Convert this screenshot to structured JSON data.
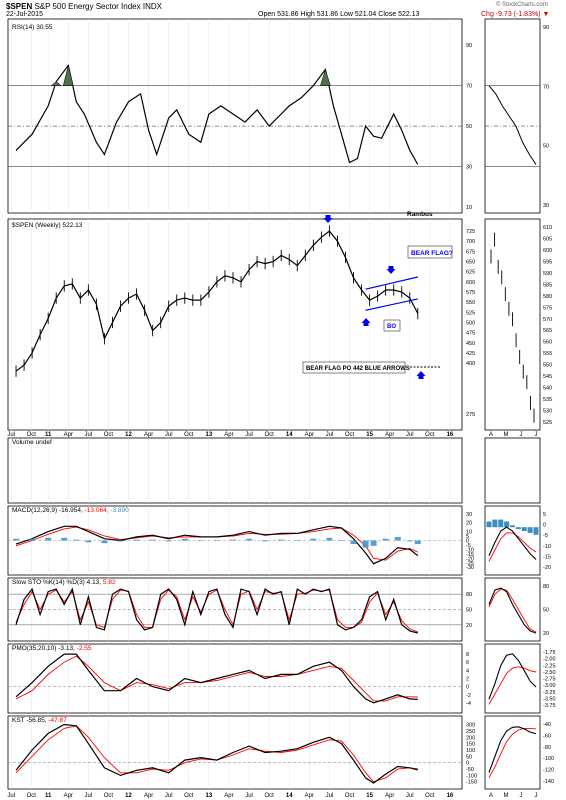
{
  "header": {
    "symbol": "$SPEN",
    "name": "S&P 500 Energy Sector Index",
    "exchange": "INDX",
    "date": "22-Jul-2015",
    "quote_line1": "Open 531.86  High 531.86  Low 521.04  Close 522.13",
    "quote_line2": "Chg -9.73 (-1.83%) ▼",
    "credit": "© StockCharts.com"
  },
  "colors": {
    "price": "#000000",
    "signal": "#ff0000",
    "histogram": "#3a8ec4",
    "annotation": "#0000ee",
    "rsi_fill": "#4e7148",
    "grid": "#999999"
  },
  "chart_data": [
    {
      "type": "line",
      "panel": "rsi",
      "title": "RSI(14) 30.55",
      "ylim": [
        10,
        100
      ],
      "yticks": [
        10,
        30,
        50,
        70,
        90
      ],
      "levels": [
        30,
        50,
        70
      ],
      "x": [
        2010.6,
        2010.8,
        2011.0,
        2011.1,
        2011.25,
        2011.35,
        2011.45,
        2011.6,
        2011.7,
        2011.85,
        2012.0,
        2012.15,
        2012.25,
        2012.35,
        2012.5,
        2012.6,
        2012.75,
        2012.9,
        2013.0,
        2013.15,
        2013.3,
        2013.45,
        2013.6,
        2013.75,
        2013.9,
        2014.0,
        2014.15,
        2014.3,
        2014.45,
        2014.55,
        2014.65,
        2014.75,
        2014.85,
        2014.95,
        2015.05,
        2015.15,
        2015.3,
        2015.4,
        2015.5,
        2015.6
      ],
      "values": [
        38,
        46,
        60,
        72,
        80,
        62,
        56,
        42,
        36,
        52,
        62,
        66,
        48,
        36,
        54,
        58,
        46,
        42,
        56,
        60,
        56,
        52,
        58,
        50,
        56,
        60,
        64,
        70,
        78,
        60,
        46,
        32,
        34,
        50,
        45,
        44,
        56,
        48,
        38,
        31
      ]
    },
    {
      "type": "line",
      "panel": "price",
      "title": "$SPEN (Weekly) 522.13",
      "label": "Rambus",
      "ylim": [
        250,
        740
      ],
      "yticks": [
        275,
        400,
        425,
        450,
        475,
        500,
        525,
        550,
        575,
        600,
        625,
        650,
        675,
        700,
        725
      ],
      "x": [
        2010.6,
        2010.7,
        2010.8,
        2010.9,
        2011.0,
        2011.1,
        2011.2,
        2011.3,
        2011.4,
        2011.5,
        2011.6,
        2011.7,
        2011.8,
        2011.9,
        2012.0,
        2012.1,
        2012.2,
        2012.3,
        2012.4,
        2012.5,
        2012.6,
        2012.7,
        2012.8,
        2012.9,
        2013.0,
        2013.1,
        2013.2,
        2013.3,
        2013.4,
        2013.5,
        2013.6,
        2013.7,
        2013.8,
        2013.9,
        2014.0,
        2014.1,
        2014.2,
        2014.3,
        2014.4,
        2014.5,
        2014.6,
        2014.7,
        2014.8,
        2014.9,
        2015.0,
        2015.1,
        2015.2,
        2015.3,
        2015.4,
        2015.5,
        2015.6
      ],
      "values": [
        380,
        395,
        425,
        470,
        510,
        560,
        590,
        595,
        560,
        580,
        545,
        460,
        500,
        540,
        560,
        570,
        530,
        480,
        500,
        540,
        555,
        560,
        555,
        555,
        575,
        600,
        615,
        610,
        600,
        630,
        650,
        645,
        650,
        665,
        655,
        640,
        665,
        690,
        710,
        725,
        700,
        660,
        610,
        580,
        555,
        565,
        580,
        580,
        575,
        560,
        522
      ],
      "annotations": [
        "BEAR FLAG?",
        "BO",
        "BEAR FLAG PO 442 BLUE ARROWS"
      ]
    },
    {
      "type": "bar",
      "panel": "volume",
      "title": "Volume undef"
    },
    {
      "type": "line",
      "panel": "macd",
      "title": "MACD(12,26,9)",
      "macd_value": "-16.954",
      "signal_value": "-13.064",
      "hist_value": "-3.890",
      "ylim": [
        -32,
        32
      ],
      "yticks": [
        -30,
        -25,
        -20,
        -15,
        -10,
        -5,
        0,
        5,
        10,
        20,
        30
      ],
      "x": [
        2010.6,
        2010.8,
        2011.0,
        2011.2,
        2011.35,
        2011.5,
        2011.7,
        2011.9,
        2012.1,
        2012.3,
        2012.5,
        2012.7,
        2012.9,
        2013.1,
        2013.3,
        2013.5,
        2013.7,
        2013.9,
        2014.1,
        2014.3,
        2014.5,
        2014.65,
        2014.8,
        2014.95,
        2015.05,
        2015.2,
        2015.35,
        2015.5,
        2015.6
      ],
      "values": [
        -4,
        2,
        10,
        16,
        16,
        10,
        2,
        0,
        4,
        6,
        2,
        6,
        4,
        4,
        6,
        10,
        6,
        8,
        8,
        12,
        16,
        14,
        2,
        -14,
        -26,
        -20,
        -8,
        -10,
        -17
      ],
      "signal": [
        -6,
        0,
        7,
        13,
        15,
        12,
        5,
        1,
        3,
        5,
        3,
        4,
        4,
        4,
        5,
        8,
        7,
        7,
        8,
        10,
        13,
        14,
        6,
        -6,
        -20,
        -22,
        -12,
        -9,
        -13
      ]
    },
    {
      "type": "line",
      "panel": "stochastic",
      "title": "Slow STO %K(14) %D(3)",
      "k_value": "4.13",
      "d_value": "5.82",
      "ylim": [
        0,
        100
      ],
      "yticks": [
        20,
        50,
        80
      ],
      "x": [
        2010.6,
        2010.7,
        2010.8,
        2010.9,
        2011.0,
        2011.1,
        2011.2,
        2011.3,
        2011.4,
        2011.5,
        2011.6,
        2011.7,
        2011.8,
        2011.9,
        2012.0,
        2012.1,
        2012.2,
        2012.3,
        2012.4,
        2012.5,
        2012.6,
        2012.7,
        2012.8,
        2012.9,
        2013.0,
        2013.1,
        2013.2,
        2013.3,
        2013.4,
        2013.5,
        2013.6,
        2013.7,
        2013.8,
        2013.9,
        2014.0,
        2014.1,
        2014.2,
        2014.3,
        2014.4,
        2014.5,
        2014.6,
        2014.7,
        2014.8,
        2014.9,
        2015.0,
        2015.1,
        2015.2,
        2015.3,
        2015.4,
        2015.5,
        2015.6
      ],
      "values": [
        20,
        70,
        90,
        40,
        85,
        90,
        60,
        90,
        20,
        75,
        15,
        10,
        80,
        90,
        85,
        30,
        10,
        15,
        80,
        90,
        70,
        20,
        85,
        40,
        85,
        90,
        40,
        15,
        90,
        85,
        40,
        90,
        80,
        85,
        20,
        90,
        80,
        90,
        85,
        90,
        20,
        10,
        15,
        30,
        75,
        85,
        30,
        70,
        20,
        8,
        4
      ],
      "signal": [
        25,
        60,
        85,
        50,
        80,
        88,
        65,
        85,
        30,
        65,
        20,
        15,
        70,
        88,
        86,
        40,
        15,
        15,
        70,
        88,
        75,
        30,
        75,
        45,
        80,
        88,
        50,
        20,
        80,
        86,
        50,
        85,
        82,
        84,
        30,
        80,
        82,
        88,
        86,
        88,
        30,
        15,
        15,
        25,
        65,
        82,
        40,
        65,
        28,
        12,
        6
      ]
    },
    {
      "type": "line",
      "panel": "pmo",
      "title": "PMO(35,20,10)",
      "pmo_value": "-3.13",
      "signal_value": "-2.55",
      "ylim": [
        -5,
        9
      ],
      "yticks": [
        -4,
        -2,
        0,
        2,
        4,
        6,
        8
      ],
      "x": [
        2010.6,
        2010.8,
        2011.0,
        2011.2,
        2011.35,
        2011.5,
        2011.7,
        2011.9,
        2012.1,
        2012.3,
        2012.5,
        2012.7,
        2012.9,
        2013.1,
        2013.3,
        2013.5,
        2013.7,
        2013.9,
        2014.1,
        2014.3,
        2014.5,
        2014.65,
        2014.8,
        2014.95,
        2015.05,
        2015.2,
        2015.35,
        2015.5,
        2015.6
      ],
      "values": [
        -2.5,
        1,
        5,
        8,
        8,
        4,
        -1,
        -1,
        2,
        0,
        -1,
        2,
        1,
        2,
        3,
        4,
        2,
        3,
        3,
        5,
        6,
        4,
        0,
        -3,
        -4,
        -3,
        -2,
        -3,
        -3.13
      ],
      "signal": [
        -3,
        -1,
        3,
        6,
        7.5,
        5,
        1,
        -1,
        1,
        0.5,
        -0.5,
        1,
        1,
        1.5,
        2.5,
        3.5,
        2.5,
        2.5,
        3,
        4,
        5,
        4.5,
        1.5,
        -1.5,
        -3.5,
        -3.5,
        -2.5,
        -2.5,
        -2.55
      ]
    },
    {
      "type": "line",
      "panel": "kst",
      "title": "KST",
      "kst_value": "-56.85",
      "signal_value": "-47.87",
      "ylim": [
        -160,
        320
      ],
      "yticks": [
        -150,
        -100,
        -50,
        0,
        50,
        100,
        150,
        200,
        250,
        300
      ],
      "x": [
        2010.6,
        2010.8,
        2011.0,
        2011.2,
        2011.35,
        2011.5,
        2011.7,
        2011.9,
        2012.1,
        2012.3,
        2012.5,
        2012.7,
        2012.9,
        2013.1,
        2013.3,
        2013.5,
        2013.7,
        2013.9,
        2014.1,
        2014.3,
        2014.5,
        2014.65,
        2014.8,
        2014.95,
        2015.05,
        2015.2,
        2015.35,
        2015.5,
        2015.6
      ],
      "values": [
        -60,
        100,
        230,
        300,
        290,
        150,
        -40,
        -100,
        -60,
        -40,
        -80,
        20,
        40,
        20,
        80,
        130,
        80,
        90,
        110,
        160,
        200,
        150,
        20,
        -120,
        -160,
        -90,
        -30,
        -40,
        -56.85
      ],
      "signal": [
        -80,
        50,
        180,
        270,
        290,
        200,
        40,
        -80,
        -80,
        -50,
        -60,
        0,
        30,
        20,
        60,
        110,
        90,
        80,
        100,
        140,
        180,
        170,
        60,
        -80,
        -150,
        -120,
        -50,
        -40,
        -47.87
      ]
    }
  ],
  "x_axis": {
    "start": 2010.5,
    "end": 2016.15,
    "labels": [
      {
        "x": 2010.54,
        "text": "Jul"
      },
      {
        "x": 2010.79,
        "text": "Oct"
      },
      {
        "x": 2011.0,
        "text": "11"
      },
      {
        "x": 2011.25,
        "text": "Apr"
      },
      {
        "x": 2011.5,
        "text": "Jul"
      },
      {
        "x": 2011.75,
        "text": "Oct"
      },
      {
        "x": 2012.0,
        "text": "12"
      },
      {
        "x": 2012.25,
        "text": "Apr"
      },
      {
        "x": 2012.5,
        "text": "Jul"
      },
      {
        "x": 2012.75,
        "text": "Oct"
      },
      {
        "x": 2013.0,
        "text": "13"
      },
      {
        "x": 2013.25,
        "text": "Apr"
      },
      {
        "x": 2013.5,
        "text": "Jul"
      },
      {
        "x": 2013.75,
        "text": "Oct"
      },
      {
        "x": 2014.0,
        "text": "14"
      },
      {
        "x": 2014.25,
        "text": "Apr"
      },
      {
        "x": 2014.5,
        "text": "Jul"
      },
      {
        "x": 2014.75,
        "text": "Oct"
      },
      {
        "x": 2015.0,
        "text": "15"
      },
      {
        "x": 2015.25,
        "text": "Apr"
      },
      {
        "x": 2015.5,
        "text": "Jul"
      },
      {
        "x": 2015.75,
        "text": "Oct"
      },
      {
        "x": 2016.0,
        "text": "16"
      }
    ],
    "zoom_labels": [
      "A",
      "M",
      "J",
      "J"
    ]
  },
  "zoom_panels": {
    "rsi_ticks": [
      "90",
      "70",
      "50",
      "30"
    ],
    "price_ticks": [
      "610",
      "605",
      "600",
      "595",
      "590",
      "585",
      "580",
      "575",
      "570",
      "565",
      "560",
      "555",
      "550",
      "545",
      "540",
      "535",
      "530",
      "525"
    ],
    "macd_ticks": [
      "5",
      "0",
      "-5",
      "-10",
      "-15",
      "-20"
    ],
    "sto_ticks": [
      "80",
      "50",
      "20"
    ],
    "pmo_ticks": [
      "-1.75",
      "-2.00",
      "-2.25",
      "-2.50",
      "-2.75",
      "-3.00",
      "-3.25",
      "-3.50",
      "-3.75"
    ],
    "kst_ticks": [
      "-40",
      "-60",
      "-80",
      "-100",
      "-120",
      "-140"
    ],
    "rsi_values": [
      70,
      66,
      60,
      55,
      50,
      42,
      36,
      31
    ],
    "price_values": [
      600,
      608,
      595,
      590,
      582,
      575,
      570,
      560,
      552,
      545,
      540,
      530,
      524
    ],
    "macd_values": [
      -15,
      -8,
      -2,
      0,
      -2,
      -6,
      -10,
      -14,
      -17
    ],
    "macd_signal": [
      -18,
      -12,
      -6,
      -3,
      -3,
      -5,
      -8,
      -11,
      -13
    ],
    "macd_hist": [
      3,
      4,
      4,
      3,
      1,
      -1,
      -2,
      -3,
      -4
    ],
    "sto_values": [
      60,
      88,
      92,
      85,
      60,
      40,
      20,
      8,
      4
    ],
    "sto_signal": [
      55,
      80,
      90,
      88,
      70,
      50,
      30,
      12,
      6
    ],
    "pmo_values": [
      -3.6,
      -3.0,
      -2.3,
      -1.9,
      -1.85,
      -2.1,
      -2.5,
      -2.9,
      -3.13
    ],
    "pmo_signal": [
      -3.8,
      -3.4,
      -3.0,
      -2.6,
      -2.4,
      -2.35,
      -2.4,
      -2.5,
      -2.55
    ],
    "kst_values": [
      -130,
      -100,
      -70,
      -52,
      -45,
      -44,
      -48,
      -54,
      -57
    ],
    "kst_signal": [
      -140,
      -120,
      -95,
      -72,
      -58,
      -50,
      -47,
      -47,
      -48
    ]
  }
}
